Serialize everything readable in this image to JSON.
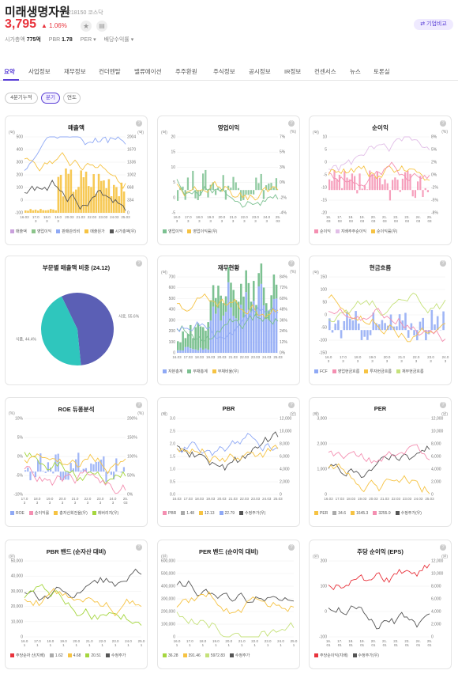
{
  "stock": {
    "name": "미래생명자원",
    "code": "218150 코스닥",
    "price": "3,795",
    "change": "▲ 1.06%",
    "star": "★",
    "memo": "▤",
    "cap_label": "시가총액",
    "cap": "775억",
    "pbr_label": "PBR",
    "pbr": "1.78",
    "per_label": "PER ▾",
    "div_label": "배당수익률 ▾",
    "compare": "⇄ 기업비교"
  },
  "tabs": [
    "요약",
    "사업정보",
    "재무정보",
    "컨더멘탈",
    "밸류에이션",
    "주주환원",
    "주식정보",
    "공시정보",
    "IR정보",
    "컨센서스",
    "뉴스",
    "토론실"
  ],
  "period": [
    "4분기누적",
    "분기",
    "연도"
  ],
  "colors": {
    "accent": "#5a3fd6",
    "up": "#e8333c"
  },
  "cards": [
    {
      "title": "매출액",
      "unitL": "(억)",
      "unitR": "(억)",
      "yl": [
        "500",
        "400",
        "300",
        "200",
        "100",
        "0",
        "-100"
      ],
      "yr": [
        "2004",
        "1670",
        "1336",
        "1002",
        "668",
        "334",
        "0"
      ],
      "xt": [
        "16.03",
        "17.0 3",
        "18.0 3",
        "19.0 3",
        "20.03",
        "21.03",
        "22.03",
        "23.03",
        "24.03",
        "25.03"
      ],
      "legend": [
        [
          "매출액",
          "#c9a0dc"
        ],
        [
          "영업이익",
          "#8bc48a"
        ],
        [
          "판매관리비",
          "#8fa9f5"
        ],
        [
          "매출원가",
          "#f6c343"
        ],
        [
          "시가총액(우)",
          "#555"
        ]
      ]
    },
    {
      "title": "영업이익",
      "unitL": "(억)",
      "unitR": "(%)",
      "yl": [
        "20",
        "15",
        "10",
        "5",
        "0",
        "-5"
      ],
      "yr": [
        "7%",
        "5%",
        "3%",
        "0%",
        "-2%",
        "-4%"
      ],
      "xt": [
        "16.0 3",
        "17.0 3",
        "18.0 3",
        "19.0 3",
        "20.0 3",
        "21.0 3",
        "22.0 3",
        "23.0 3",
        "24.0 3",
        "25. 03"
      ],
      "legend": [
        [
          "영업이익",
          "#7cc191"
        ],
        [
          "영업이익률(우)",
          "#f6c343"
        ]
      ]
    },
    {
      "title": "순이익",
      "unitL": "(억)",
      "unitR": "(%)",
      "yl": [
        "10",
        "5",
        "0",
        "-5",
        "-10",
        "-15",
        "-20"
      ],
      "yr": [
        "8%",
        "5%",
        "2%",
        "0%",
        "-2%",
        "-5%",
        "-8%"
      ],
      "xt": [
        "16. 03",
        "17. 03",
        "18. 03",
        "19. 03",
        "20. 03",
        "21. 03",
        "22. 03",
        "23. 03",
        "24. 03",
        "25. 03"
      ],
      "legend": [
        [
          "순이익",
          "#f48fb1"
        ],
        [
          "지배주주순이익",
          "#e1bee7"
        ],
        [
          "순이익률(우)",
          "#f6c343"
        ]
      ]
    },
    {
      "title": "부문별 매출액 비중 (24.12)",
      "slices": [
        {
          "label": "사료, 55.6%",
          "value": 55.6,
          "color": "#5b5fb5"
        },
        {
          "label": "식품, 44.4%",
          "value": 44.4,
          "color": "#2fc6bd"
        }
      ]
    },
    {
      "title": "재무현황",
      "unitL": "(억)",
      "unitR": "(%)",
      "yl": [
        "700",
        "600",
        "500",
        "400",
        "300",
        "200",
        "100",
        "0"
      ],
      "yr": [
        "84%",
        "72%",
        "60%",
        "48%",
        "36%",
        "24%",
        "12%",
        "0%"
      ],
      "xt": [
        "16.03",
        "17.03",
        "18.03",
        "19.03",
        "20.03",
        "21.03",
        "22.03",
        "23.03",
        "24.03",
        "25.03"
      ],
      "legend": [
        [
          "자본총계",
          "#8fa9f5"
        ],
        [
          "부채총계",
          "#7cc191"
        ],
        [
          "부채비율(우)",
          "#f6c343"
        ]
      ]
    },
    {
      "title": "현금흐름",
      "unitL": "(억)",
      "yl": [
        "150",
        "100",
        "50",
        "0",
        "-50",
        "-100",
        "-150"
      ],
      "xt": [
        "16.0 3",
        "17.0 3",
        "18.0 3",
        "19.0 3",
        "20.0 3",
        "21.0 3",
        "22.0 3",
        "23.0 3",
        "24.0 3"
      ],
      "legend": [
        [
          "FCF",
          "#8fa9f5"
        ],
        [
          "영업현금흐름",
          "#f48fb1"
        ],
        [
          "투자현금흐름",
          "#f6c343"
        ],
        [
          "재무현금흐름",
          "#c5e17a"
        ]
      ]
    },
    {
      "title": "ROE 듀퐁분석",
      "unitL": "(%)",
      "unitR": "(%)",
      "yl": [
        "10%",
        "5%",
        "0%",
        "-5%",
        "-10%"
      ],
      "yr": [
        "200%",
        "150%",
        "100%",
        "50%",
        "0%"
      ],
      "xt": [
        "17.0 3",
        "18.0 3",
        "19.0 3",
        "20.0 3",
        "21.0 3",
        "22.0 3",
        "23.0 3",
        "24.0 3",
        "25. 03"
      ],
      "legend": [
        [
          "ROE",
          "#8fa9f5"
        ],
        [
          "순이익률",
          "#f48fb1"
        ],
        [
          "총자산회전율(우)",
          "#f6c343"
        ],
        [
          "레버리지(우)",
          "#a5d63f"
        ]
      ]
    },
    {
      "title": "PBR",
      "unitL": "(배)",
      "unitR": "(원)",
      "yl": [
        "3.0",
        "2.5",
        "2.0",
        "1.5",
        "1.0",
        "0.5",
        "0.0"
      ],
      "yr": [
        "12,000",
        "10,000",
        "8,000",
        "6,000",
        "4,000",
        "2,000",
        "0"
      ],
      "xt": [
        "16.03",
        "17.03",
        "18.03",
        "19.03",
        "20.03",
        "21.03",
        "22.03",
        "23.03",
        "24.03",
        "25.03"
      ],
      "legend": [
        [
          "PBR",
          "#f48fb1"
        ],
        [
          "1.48",
          "#aaa"
        ],
        [
          "12.13",
          "#f6c343"
        ],
        [
          "22.79",
          "#8fa9f5"
        ],
        [
          "수정주가(우)",
          "#555"
        ]
      ]
    },
    {
      "title": "PER",
      "unitL": "(배)",
      "unitR": "(원)",
      "yl": [
        "3,000",
        "2,000",
        "1,000",
        "0"
      ],
      "yr": [
        "12,000",
        "10,000",
        "8,000",
        "6,000",
        "4,000",
        "2,000",
        "0"
      ],
      "xt": [
        "16.03",
        "17.03",
        "18.03",
        "19.03",
        "20.03",
        "21.03",
        "22.03",
        "23.03",
        "24.03",
        "25.03"
      ],
      "legend": [
        [
          "PER",
          "#f6c343"
        ],
        [
          "34.6",
          "#aaa"
        ],
        [
          "1645.3",
          "#f6c343"
        ],
        [
          "3255.9",
          "#f48fb1"
        ],
        [
          "수정주가(우)",
          "#555"
        ]
      ]
    },
    {
      "title": "PBR 밴드 (순자산 대비)",
      "unitL": "(원)",
      "yl": [
        "50,000",
        "40,000",
        "30,000",
        "20,000",
        "10,000",
        "0"
      ],
      "xt": [
        "16.0 1",
        "17.0 1",
        "18.0 1",
        "19.0 1",
        "20.0 1",
        "21.0 1",
        "22.0 1",
        "23.0 1",
        "24.0 1",
        "25.0 1"
      ],
      "legend": [
        [
          "주당순자 산(지배)",
          "#e8333c"
        ],
        [
          "1.62",
          "#aaa"
        ],
        [
          "4.68",
          "#f6c343"
        ],
        [
          "20.51",
          "#a5d63f"
        ],
        [
          "수정주가",
          "#555"
        ]
      ]
    },
    {
      "title": "PER 밴드 (순이익 대비)",
      "unitL": "(원)",
      "yl": [
        "600,000",
        "500,000",
        "400,000",
        "300,000",
        "200,000",
        "100,000",
        "0"
      ],
      "xt": [
        "16.0 1",
        "17.0 1",
        "18.0 1",
        "19.0 1",
        "20.0 1",
        "21.0 1",
        "22.0 1",
        "23.0 1",
        "24.0 1",
        "25.0 1"
      ],
      "legend": [
        [
          "36.28",
          "#a5d63f"
        ],
        [
          "391.46",
          "#f6c343"
        ],
        [
          "5972.83",
          "#c5e17a"
        ],
        [
          "수정주가",
          "#555"
        ]
      ]
    },
    {
      "title": "주당 순이익 (EPS)",
      "unitL": "(원)",
      "unitR": "(원)",
      "yl": [
        "200",
        "100",
        "0",
        "-100"
      ],
      "yr": [
        "12,000",
        "10,000",
        "8,000",
        "6,000",
        "4,000",
        "2,000",
        "0"
      ],
      "xt": [
        "16. 01",
        "17. 01",
        "18. 01",
        "19. 01",
        "20. 01",
        "21. 01",
        "22. 01",
        "23. 01",
        "24. 01",
        "25. 01"
      ],
      "legend": [
        [
          "주당순이익(지배)",
          "#e8333c"
        ],
        [
          "수정주가(우)",
          "#555"
        ]
      ]
    }
  ]
}
